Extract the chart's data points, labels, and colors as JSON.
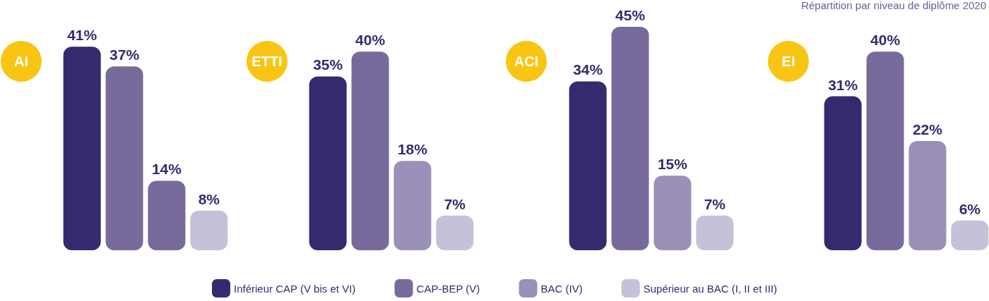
{
  "chart_data": [
    {
      "type": "bar",
      "title": "AI",
      "categories": [
        null
      ],
      "grid": false,
      "tick_labels": false,
      "series": [
        {
          "color": "#352a6e",
          "values": [
            41
          ],
          "value_labels": [
            "41%"
          ]
        },
        {
          "color": "#786a9b",
          "values": [
            37
          ],
          "value_labels": [
            "37%"
          ]
        },
        {
          "color": "#786a9b",
          "values": [
            14
          ],
          "value_labels": [
            "14%"
          ]
        },
        {
          "color": "#c6c1d8",
          "values": [
            8
          ],
          "value_labels": [
            "8%"
          ]
        }
      ]
    },
    {
      "type": "bar",
      "title": "ETTI",
      "categories": [
        null
      ],
      "grid": false,
      "tick_labels": false,
      "legend": "bottom",
      "series": [
        {
          "name": "Inférieur CAP (V bis et VI)",
          "color": "#352a6e",
          "values": [
            35
          ],
          "value_labels": [
            "35%"
          ]
        },
        {
          "name": "CAP-BEP (V)",
          "color": "#786a9b",
          "values": [
            40
          ],
          "value_labels": [
            "40%"
          ]
        },
        {
          "name": "BAC (IV)",
          "color": "#9b90b8",
          "values": [
            18
          ],
          "value_labels": [
            "18%"
          ]
        },
        {
          "name": "Supérieur au BAC (I, II et III)",
          "color": "#c6c1d8",
          "values": [
            7
          ],
          "value_labels": [
            "7%"
          ]
        }
      ]
    },
    {
      "type": "bar",
      "title": "ACI",
      "categories": [
        null
      ],
      "grid": false,
      "tick_labels": false,
      "series": [
        {
          "color": "#352a6e",
          "values": [
            34
          ],
          "value_labels": [
            "34%"
          ]
        },
        {
          "color": "#786a9b",
          "values": [
            45
          ],
          "value_labels": [
            "45%"
          ]
        },
        {
          "color": "#9b90b8",
          "values": [
            15
          ],
          "value_labels": [
            "15%"
          ]
        },
        {
          "color": "#c6c1d8",
          "values": [
            7
          ],
          "value_labels": [
            "7%"
          ]
        }
      ]
    },
    {
      "type": "bar",
      "title": "EI",
      "subtitle": "Répartition par niveau de diplôme 2020",
      "categories": [
        null
      ],
      "grid": false,
      "tick_labels": false,
      "series": [
        {
          "color": "#352a6e",
          "values": [
            31
          ],
          "value_labels": [
            "31%"
          ]
        },
        {
          "color": "#786a9b",
          "values": [
            40
          ],
          "value_labels": [
            "40%"
          ]
        },
        {
          "color": "#9b90b8",
          "values": [
            22
          ],
          "value_labels": [
            "22%"
          ]
        },
        {
          "color": "#c6c1d8",
          "values": [
            6
          ],
          "value_labels": [
            "6%"
          ]
        }
      ]
    }
  ]
}
